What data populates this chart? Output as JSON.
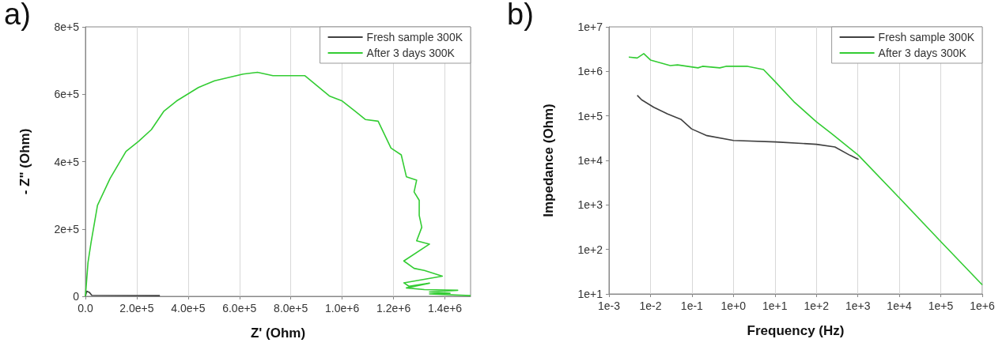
{
  "chart_data": [
    {
      "type": "line",
      "title": "a)",
      "xlabel": "Z' (Ohm)",
      "ylabel": "- Z\" (Ohm)",
      "xlim": [
        0,
        1500000
      ],
      "ylim": [
        0,
        800000
      ],
      "xticks": [
        {
          "value": 0,
          "label": "0.0"
        },
        {
          "value": 200000,
          "label": "2.0e+5"
        },
        {
          "value": 400000,
          "label": "4.0e+5"
        },
        {
          "value": 600000,
          "label": "6.0e+5"
        },
        {
          "value": 800000,
          "label": "8.0e+5"
        },
        {
          "value": 1000000,
          "label": "1.0e+6"
        },
        {
          "value": 1200000,
          "label": "1.2e+6"
        },
        {
          "value": 1400000,
          "label": "1.4e+6"
        }
      ],
      "yticks": [
        0,
        {
          "value": 200000,
          "label": "2e+5"
        },
        {
          "value": 400000,
          "label": "4e+5"
        },
        {
          "value": 600000,
          "label": "6e+5"
        },
        {
          "value": 800000,
          "label": "8e+5"
        }
      ],
      "grid": "x",
      "legend": "top right",
      "marker": "none",
      "line_style": "solid",
      "series": [
        {
          "name": "Fresh sample 300K",
          "color": "#404040",
          "x": [
            0,
            5000,
            15000,
            25000,
            290000
          ],
          "values": [
            0,
            15000,
            12000,
            3000,
            2000
          ]
        },
        {
          "name": "After 3 days 300K",
          "color": "#33cc33",
          "x": [
            0,
            10000,
            22000,
            47000,
            96000,
            158000,
            207000,
            257000,
            306000,
            355000,
            440000,
            503000,
            614000,
            670000,
            730000,
            855000,
            950000,
            1000000,
            1050000,
            1090000,
            1140000,
            1190000,
            1230000,
            1250000,
            1290000,
            1280000,
            1300000,
            1300000,
            1310000,
            1290000,
            1340000,
            1240000,
            1280000,
            1320000,
            1390000,
            1240000,
            1260000,
            1340000,
            1250000,
            1320000,
            1450000,
            1340000,
            1420000,
            1340000,
            1500000
          ],
          "values": [
            0,
            100000,
            160000,
            270000,
            350000,
            430000,
            460000,
            495000,
            550000,
            580000,
            620000,
            640000,
            660000,
            665000,
            655000,
            655000,
            595000,
            580000,
            550000,
            525000,
            520000,
            440000,
            420000,
            355000,
            345000,
            310000,
            285000,
            240000,
            205000,
            165000,
            155000,
            105000,
            83000,
            77000,
            60000,
            40000,
            30000,
            39000,
            25000,
            20000,
            18000,
            13000,
            9000,
            7000,
            2000
          ]
        }
      ]
    },
    {
      "type": "line",
      "title": "b)",
      "xlabel": "Frequency (Hz)",
      "ylabel": "Impedance (Ohm)",
      "log": "xy",
      "xlim": [
        0.001,
        1000000
      ],
      "ylim": [
        10,
        10000000
      ],
      "xticks": [
        {
          "value": 0.001,
          "label": "1e-3"
        },
        {
          "value": 0.01,
          "label": "1e-2"
        },
        {
          "value": 0.1,
          "label": "1e-1"
        },
        {
          "value": 1,
          "label": "1e+0"
        },
        {
          "value": 10,
          "label": "1e+1"
        },
        {
          "value": 100,
          "label": "1e+2"
        },
        {
          "value": 1000,
          "label": "1e+3"
        },
        {
          "value": 10000,
          "label": "1e+4"
        },
        {
          "value": 100000,
          "label": "1e+5"
        },
        {
          "value": 1000000,
          "label": "1e+6"
        }
      ],
      "yticks": [
        {
          "value": 10,
          "label": "1e+1"
        },
        {
          "value": 100,
          "label": "1e+2"
        },
        {
          "value": 1000,
          "label": "1e+3"
        },
        {
          "value": 10000,
          "label": "1e+4"
        },
        {
          "value": 100000,
          "label": "1e+5"
        },
        {
          "value": 1000000,
          "label": "1e+6"
        },
        {
          "value": 10000000,
          "label": "1e+7"
        }
      ],
      "grid": "x",
      "legend": "top right",
      "marker": "none",
      "line_style": "solid",
      "series": [
        {
          "name": "Fresh sample 300K",
          "color": "#404040",
          "x": [
            0.0048,
            0.0061,
            0.012,
            0.026,
            0.054,
            0.098,
            0.23,
            1.0,
            10.5,
            100,
            280,
            650,
            1040
          ],
          "values": [
            290000,
            230000,
            156000,
            110000,
            84000,
            51000,
            36000,
            28000,
            26000,
            23000,
            20000,
            13000,
            10500
          ]
        },
        {
          "name": "After 3 days 300K",
          "color": "#33cc33",
          "x": [
            0.003,
            0.0048,
            0.0069,
            0.01,
            0.03,
            0.045,
            0.14,
            0.18,
            0.47,
            0.66,
            2.2,
            5.3,
            10.5,
            30,
            100,
            240,
            1040,
            10700,
            100000,
            1000000
          ],
          "values": [
            2100000,
            2000000,
            2500000,
            1800000,
            1350000,
            1400000,
            1200000,
            1300000,
            1200000,
            1300000,
            1300000,
            1100000,
            570000,
            200000,
            74000,
            39000,
            13000,
            1350,
            150,
            16
          ]
        }
      ]
    }
  ]
}
